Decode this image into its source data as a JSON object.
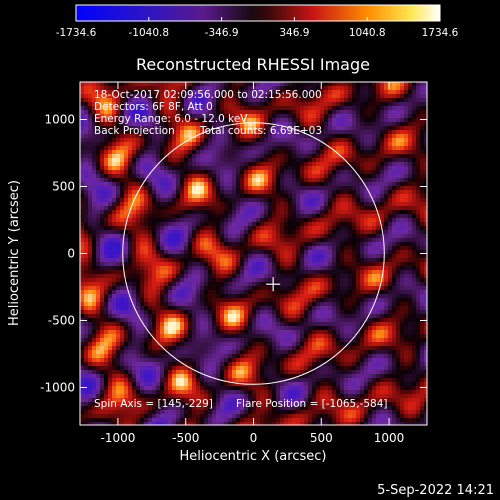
{
  "colorbar": {
    "ticks": [
      "-1734.6",
      "-1040.8",
      "-346.9",
      "346.9",
      "1040.8",
      "1734.6"
    ],
    "range": [
      -1734.6,
      1734.6
    ],
    "colormap": "blue-purple-red-yellow-white"
  },
  "chart_data": {
    "type": "heatmap",
    "title": "Reconstructed RHESSI Image",
    "xlabel": "Heliocentric X (arcsec)",
    "ylabel": "Heliocentric Y (arcsec)",
    "xlim": [
      -1280,
      1280
    ],
    "ylim": [
      -1280,
      1280
    ],
    "x_ticks": [
      "-1000",
      "-500",
      "0",
      "500",
      "1000"
    ],
    "y_ticks": [
      "1000",
      "500",
      "0",
      "-500",
      "-1000"
    ],
    "solar_limb_radius_arcsec": 965,
    "spin_axis_marker": [
      145,
      -229
    ],
    "annotations": {
      "time_range": "18-Oct-2017 02:09:56.000 to 02:15:56.000",
      "detectors": "Detectors: 6F 8F, Att 0",
      "energy": "Energy Range: 6.0 - 12.0 keV",
      "method": "Back Projection",
      "total_counts": "Total counts: 6.69E+03",
      "spin_axis": "Spin Axis = [145,-229]",
      "flare_position": "Flare Position = [-1065,-584]"
    }
  },
  "footer": {
    "timestamp": "5-Sep-2022 14:21"
  }
}
